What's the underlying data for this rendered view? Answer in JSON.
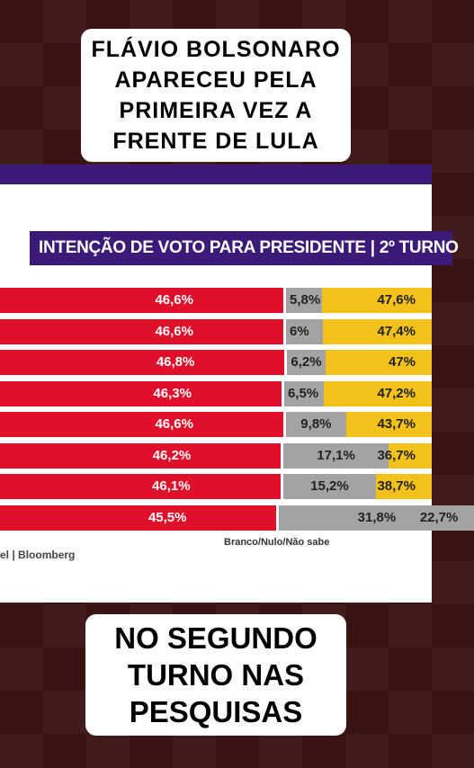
{
  "overlay": {
    "top_text": "FLÁVIO BOLSONARO APARECEU PELA PRIMEIRA VEZ A FRENTE DE LULA",
    "bottom_text": "NO SEGUNDO TURNO NAS PESQUISAS"
  },
  "chart_data": {
    "type": "bar",
    "stacked": true,
    "orientation": "horizontal",
    "title": "INTENÇÃO DE VOTO PARA PRESIDENTE | 2º TURNO",
    "source": "el | Bloomberg",
    "series": [
      {
        "name": "",
        "color": "#e0102b",
        "values": [
          46.6,
          46.6,
          46.8,
          46.3,
          46.6,
          46.2,
          46.1,
          45.5
        ],
        "labels": [
          "46,6%",
          "46,6%",
          "46,8%",
          "46,3%",
          "46,6%",
          "46,2%",
          "46,1%",
          "45,5%"
        ]
      },
      {
        "name": "Branco/Nulo/Não sabe",
        "color": "#a3a3a3",
        "values": [
          5.8,
          6,
          6.2,
          6.5,
          9.8,
          17.1,
          15.2,
          31.8
        ],
        "labels": [
          "5,8%",
          "6%",
          "6,2%",
          "6,5%",
          "9,8%",
          "17,1%",
          "15,2%",
          "31,8%"
        ]
      },
      {
        "name": "",
        "color": "#f2c21b",
        "values": [
          47.6,
          47.4,
          47,
          47.2,
          43.7,
          36.7,
          38.7,
          22.7
        ],
        "labels": [
          "47,6%",
          "47,4%",
          "47%",
          "47,2%",
          "43,7%",
          "36,7%",
          "38,7%",
          "22,7%"
        ]
      }
    ]
  }
}
